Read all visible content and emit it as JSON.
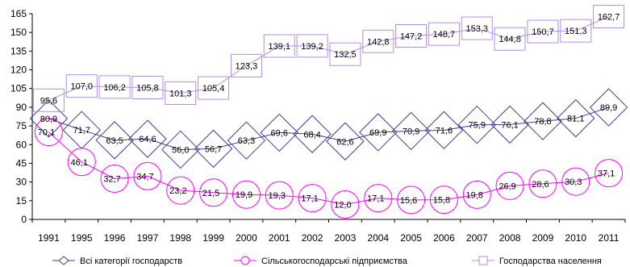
{
  "chart_data": {
    "type": "line",
    "categories": [
      "1991",
      "1995",
      "1996",
      "1997",
      "1998",
      "1999",
      "2000",
      "2001",
      "2002",
      "2003",
      "2004",
      "2005",
      "2006",
      "2007",
      "2008",
      "2009",
      "2010",
      "2011"
    ],
    "ylim": [
      0,
      165
    ],
    "yticks": [
      0,
      15,
      30,
      45,
      60,
      75,
      90,
      105,
      120,
      135,
      150,
      165
    ],
    "grid": false,
    "legend_position": "bottom",
    "series": [
      {
        "name": "Всі категорії господарств",
        "color": "#3d3d8f",
        "marker": "diamond",
        "values": [
          80.9,
          71.7,
          63.5,
          64.6,
          56.0,
          56.7,
          63.3,
          69.6,
          68.4,
          62.6,
          69.9,
          70.9,
          71.6,
          75.9,
          76.1,
          78.8,
          81.1,
          89.9
        ],
        "labels": [
          "80,9",
          "71,7",
          "63,5",
          "64,6",
          "56,0",
          "56,7",
          "63,3",
          "69,6",
          "68,4",
          "62,6",
          "69,9",
          "70,9",
          "71,6",
          "75,9",
          "76,1",
          "78,8",
          "81,1",
          "89,9"
        ]
      },
      {
        "name": "Сільськогосподарські підприємства",
        "color": "#ff00ff",
        "marker": "circle",
        "values": [
          70.1,
          46.1,
          32.7,
          34.7,
          23.2,
          21.5,
          19.9,
          19.3,
          17.1,
          12.0,
          17.1,
          15.6,
          15.8,
          19.8,
          26.9,
          28.6,
          30.3,
          37.1
        ],
        "labels": [
          "70,1",
          "46,1",
          "32,7",
          "34,7",
          "23,2",
          "21,5",
          "19,9",
          "19,3",
          "17,1",
          "12,0",
          "17,1",
          "15,6",
          "15,8",
          "19,8",
          "26,9",
          "28,6",
          "30,3",
          "37,1"
        ]
      },
      {
        "name": "Господарства населення",
        "color": "#b28fe6",
        "marker": "square",
        "values": [
          95.6,
          107.0,
          106.2,
          105.8,
          101.3,
          105.4,
          123.3,
          139.1,
          139.2,
          132.5,
          142.8,
          147.2,
          148.7,
          153.3,
          144.8,
          150.7,
          151.3,
          162.7
        ],
        "labels": [
          "95,6",
          "107,0",
          "106,2",
          "105,8",
          "101,3",
          "105,4",
          "123,3",
          "139,1",
          "139,2",
          "132,5",
          "142,8",
          "147,2",
          "148,7",
          "153,3",
          "144,8",
          "150,7",
          "151,3",
          "162,7"
        ]
      }
    ]
  }
}
